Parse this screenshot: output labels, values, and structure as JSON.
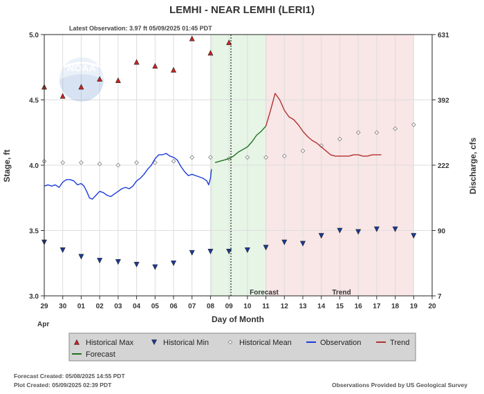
{
  "chart_data": {
    "type": "line",
    "title": "LEMHI - NEAR LEMHI  (LERI1)",
    "subtitle": "Latest Observation: 3.97 ft 05/09/2025 01:45 PDT",
    "xlabel": "Day of Month",
    "x_month": "Apr",
    "ylabel_left": "Stage, ft",
    "ylabel_right": "Discharge, cfs",
    "x_ticks": [
      "29",
      "30",
      "01",
      "02",
      "03",
      "04",
      "05",
      "06",
      "07",
      "08",
      "09",
      "10",
      "11",
      "12",
      "13",
      "14",
      "15",
      "16",
      "17",
      "18",
      "19",
      "20"
    ],
    "ylim": [
      3.0,
      5.0
    ],
    "y_ticks": [
      3.0,
      3.5,
      4.0,
      4.5,
      5.0
    ],
    "y_tick_labels": [
      "3.0",
      "3.5",
      "4.0",
      "4.5",
      "5.0"
    ],
    "y2_tick_labels": [
      "7",
      "90",
      "222",
      "392",
      "631"
    ],
    "grid": true,
    "regions": [
      {
        "label": "Forecast",
        "x": [
          10.05,
          13.0
        ],
        "color": "#e6f5e6"
      },
      {
        "label": "Trend",
        "x": [
          13.0,
          21.0
        ],
        "color": "#f9e6e6"
      }
    ],
    "legend": {
      "placement": "bottom",
      "items": [
        {
          "label": "Historical Max",
          "icon": "triangle-up",
          "color": "#cc2222"
        },
        {
          "label": "Historical Min",
          "icon": "triangle-down",
          "color": "#1a3a99"
        },
        {
          "label": "Historical Mean",
          "icon": "diamond",
          "color": "#888888"
        },
        {
          "label": "Observation",
          "icon": "line",
          "color": "#1a3adb"
        },
        {
          "label": "Trend",
          "icon": "line",
          "color": "#b03030"
        },
        {
          "label": "Forecast",
          "icon": "line",
          "color": "#207020"
        }
      ]
    },
    "series": [
      {
        "name": "Historical Max",
        "color": "#cc2222",
        "points": [
          [
            1.0,
            4.6
          ],
          [
            2.0,
            4.53
          ],
          [
            3.0,
            4.6
          ],
          [
            4.0,
            4.66
          ],
          [
            5.0,
            4.65
          ],
          [
            6.0,
            4.79
          ],
          [
            7.0,
            4.76
          ],
          [
            8.0,
            4.73
          ],
          [
            9.0,
            4.97
          ],
          [
            10.0,
            4.86
          ],
          [
            11.0,
            4.94
          ]
        ]
      },
      {
        "name": "Historical Min",
        "color": "#1a3a99",
        "points": [
          [
            1.0,
            3.41
          ],
          [
            2.0,
            3.35
          ],
          [
            3.0,
            3.3
          ],
          [
            4.0,
            3.27
          ],
          [
            5.0,
            3.26
          ],
          [
            6.0,
            3.24
          ],
          [
            7.0,
            3.22
          ],
          [
            8.0,
            3.25
          ],
          [
            9.0,
            3.33
          ],
          [
            10.0,
            3.34
          ],
          [
            11.0,
            3.34
          ],
          [
            12.0,
            3.35
          ],
          [
            13.0,
            3.37
          ],
          [
            14.0,
            3.41
          ],
          [
            15.0,
            3.4
          ],
          [
            16.0,
            3.46
          ],
          [
            17.0,
            3.5
          ],
          [
            18.0,
            3.49
          ],
          [
            19.0,
            3.51
          ],
          [
            20.0,
            3.51
          ],
          [
            21.0,
            3.46
          ]
        ]
      },
      {
        "name": "Historical Mean",
        "color": "#888888",
        "points": [
          [
            1.0,
            4.03
          ],
          [
            2.0,
            4.02
          ],
          [
            3.0,
            4.02
          ],
          [
            4.0,
            4.01
          ],
          [
            5.0,
            4.0
          ],
          [
            6.0,
            4.02
          ],
          [
            7.0,
            4.02
          ],
          [
            8.0,
            4.03
          ],
          [
            9.0,
            4.06
          ],
          [
            10.0,
            4.06
          ],
          [
            11.0,
            4.05
          ],
          [
            12.0,
            4.06
          ],
          [
            13.0,
            4.06
          ],
          [
            14.0,
            4.07
          ],
          [
            15.0,
            4.11
          ],
          [
            16.0,
            4.15
          ],
          [
            17.0,
            4.2
          ],
          [
            18.0,
            4.25
          ],
          [
            19.0,
            4.25
          ],
          [
            20.0,
            4.28
          ],
          [
            21.0,
            4.31
          ]
        ]
      },
      {
        "name": "Observation",
        "color": "#1a3adb",
        "points": [
          [
            1.0,
            3.84
          ],
          [
            1.2,
            3.85
          ],
          [
            1.4,
            3.84
          ],
          [
            1.6,
            3.85
          ],
          [
            1.8,
            3.83
          ],
          [
            2.0,
            3.87
          ],
          [
            2.2,
            3.89
          ],
          [
            2.4,
            3.89
          ],
          [
            2.6,
            3.88
          ],
          [
            2.8,
            3.85
          ],
          [
            3.0,
            3.86
          ],
          [
            3.15,
            3.84
          ],
          [
            3.3,
            3.8
          ],
          [
            3.45,
            3.75
          ],
          [
            3.6,
            3.74
          ],
          [
            3.8,
            3.77
          ],
          [
            4.0,
            3.8
          ],
          [
            4.2,
            3.79
          ],
          [
            4.4,
            3.77
          ],
          [
            4.6,
            3.76
          ],
          [
            4.8,
            3.78
          ],
          [
            5.0,
            3.8
          ],
          [
            5.2,
            3.82
          ],
          [
            5.4,
            3.83
          ],
          [
            5.6,
            3.82
          ],
          [
            5.8,
            3.84
          ],
          [
            6.0,
            3.88
          ],
          [
            6.2,
            3.9
          ],
          [
            6.4,
            3.93
          ],
          [
            6.6,
            3.97
          ],
          [
            6.8,
            4.0
          ],
          [
            7.0,
            4.05
          ],
          [
            7.2,
            4.08
          ],
          [
            7.4,
            4.08
          ],
          [
            7.6,
            4.09
          ],
          [
            7.8,
            4.07
          ],
          [
            8.0,
            4.06
          ],
          [
            8.2,
            4.04
          ],
          [
            8.4,
            3.99
          ],
          [
            8.6,
            3.95
          ],
          [
            8.8,
            3.92
          ],
          [
            9.0,
            3.93
          ],
          [
            9.2,
            3.92
          ],
          [
            9.4,
            3.91
          ],
          [
            9.6,
            3.9
          ],
          [
            9.8,
            3.88
          ],
          [
            9.9,
            3.85
          ],
          [
            10.0,
            3.9
          ],
          [
            10.05,
            3.97
          ]
        ]
      },
      {
        "name": "Forecast",
        "color": "#207020",
        "points": [
          [
            10.25,
            4.02
          ],
          [
            10.5,
            4.03
          ],
          [
            10.75,
            4.04
          ],
          [
            11.0,
            4.05
          ],
          [
            11.25,
            4.07
          ],
          [
            11.5,
            4.1
          ],
          [
            11.75,
            4.12
          ],
          [
            12.0,
            4.14
          ],
          [
            12.25,
            4.18
          ],
          [
            12.5,
            4.23
          ],
          [
            12.75,
            4.26
          ],
          [
            13.0,
            4.3
          ]
        ]
      },
      {
        "name": "Trend",
        "color": "#b03030",
        "points": [
          [
            13.0,
            4.3
          ],
          [
            13.25,
            4.42
          ],
          [
            13.5,
            4.55
          ],
          [
            13.75,
            4.5
          ],
          [
            14.0,
            4.42
          ],
          [
            14.25,
            4.37
          ],
          [
            14.5,
            4.35
          ],
          [
            14.75,
            4.31
          ],
          [
            15.0,
            4.26
          ],
          [
            15.25,
            4.22
          ],
          [
            15.5,
            4.19
          ],
          [
            15.75,
            4.17
          ],
          [
            16.0,
            4.14
          ],
          [
            16.25,
            4.11
          ],
          [
            16.5,
            4.08
          ],
          [
            16.75,
            4.07
          ],
          [
            17.0,
            4.07
          ],
          [
            17.25,
            4.07
          ],
          [
            17.5,
            4.07
          ],
          [
            17.75,
            4.08
          ],
          [
            18.0,
            4.08
          ],
          [
            18.25,
            4.07
          ],
          [
            18.5,
            4.07
          ],
          [
            18.75,
            4.08
          ],
          [
            19.0,
            4.08
          ],
          [
            19.25,
            4.08
          ]
        ]
      }
    ]
  },
  "watermark": {
    "text": "NOAA"
  },
  "footer": {
    "forecast_created": "Forecast Created: 05/08/2025 14:55 PDT",
    "plot_created": "Plot Created: 05/09/2025 02:39 PDT",
    "credit": "Observations Provided by US Geological Survey"
  }
}
